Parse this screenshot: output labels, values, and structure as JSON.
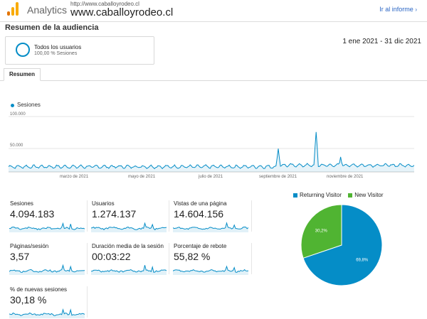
{
  "header": {
    "product": "Analytics",
    "property_url": "http://www.caballoyrodeo.cl",
    "property_name": "www.caballoyrodeo.cl",
    "report_link": "Ir al informe",
    "logo_colors": [
      "#f9ab00",
      "#e37400"
    ]
  },
  "page": {
    "title": "Resumen de la audiencia"
  },
  "segment": {
    "name": "Todos los usuarios",
    "percent": "100,00 % Sesiones",
    "ring_color": "#058dc7"
  },
  "date_range": "1 ene 2021 - 31 dic 2021",
  "tabs": [
    {
      "label": "Resumen"
    }
  ],
  "main_chart": {
    "legend": "Sesiones",
    "color": "#058dc7"
  },
  "chart_data": [
    {
      "type": "line",
      "series": [
        {
          "name": "Sesiones"
        }
      ],
      "x_ticks": [
        "marzo de 2021",
        "mayo de 2021",
        "julio de 2021",
        "septiembre de 2021",
        "noviembre de 2021"
      ],
      "y_ticks": [
        "100.000",
        "50.000"
      ],
      "ylim": [
        0,
        100000
      ],
      "x_range": [
        "2021-01-01",
        "2021-12-31"
      ],
      "baseline": 9500,
      "peaks": [
        {
          "x": "2021-08-31",
          "y": 42000
        },
        {
          "x": "2021-10-04",
          "y": 72000
        },
        {
          "x": "2021-10-26",
          "y": 27000
        }
      ],
      "grid": true,
      "legend": "top-left"
    },
    {
      "type": "pie",
      "categories": [
        "Returning Visitor",
        "New Visitor"
      ],
      "values": [
        69.8,
        30.2
      ],
      "labels": [
        "69,8%",
        "30,2%"
      ],
      "colors": [
        "#058dc7",
        "#50b432"
      ],
      "legend": "top"
    }
  ],
  "metrics": [
    {
      "label": "Sesiones",
      "value": "4.094.183"
    },
    {
      "label": "Usuarios",
      "value": "1.274.137"
    },
    {
      "label": "Vistas de una página",
      "value": "14.604.156"
    },
    {
      "label": "Páginas/sesión",
      "value": "3,57"
    },
    {
      "label": "Duración media de la sesión",
      "value": "00:03:22"
    },
    {
      "label": "Porcentaje de rebote",
      "value": "55,82 %"
    },
    {
      "label": "% de nuevas sesiones",
      "value": "30,18 %"
    }
  ]
}
